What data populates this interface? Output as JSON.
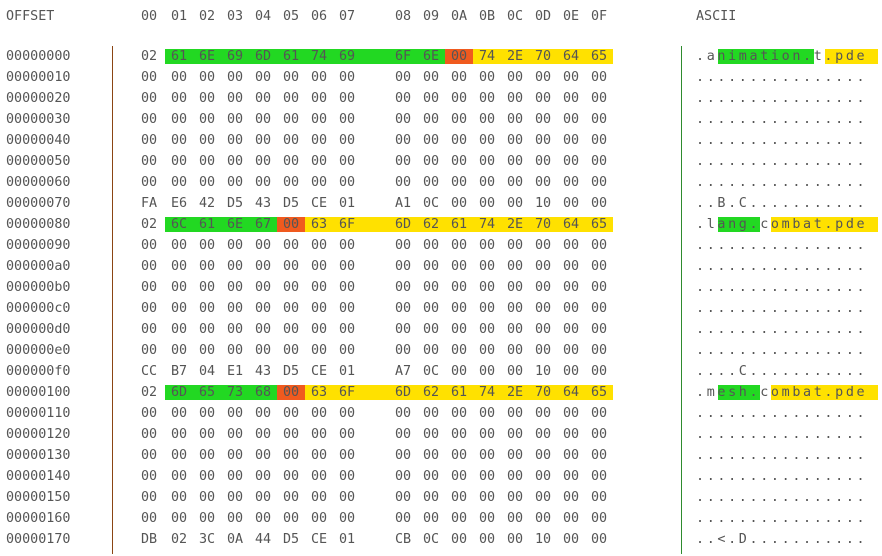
{
  "header": {
    "offset_label": "OFFSET",
    "columns": [
      "00",
      "01",
      "02",
      "03",
      "04",
      "05",
      "06",
      "07",
      "08",
      "09",
      "0A",
      "0B",
      "0C",
      "0D",
      "0E",
      "0F"
    ],
    "ascii_label": "ASCII"
  },
  "colors": {
    "string_highlight": "#22d822",
    "name_highlight": "#ffe100",
    "separator_highlight": "#f05a1e",
    "divider_left": "#8b4513",
    "divider_right": "#2e8b2e"
  },
  "rows": [
    {
      "offset": "00000000",
      "bytes": [
        "02",
        "61",
        "6E",
        "69",
        "6D",
        "61",
        "74",
        "69",
        "6F",
        "6E",
        "00",
        "74",
        "2E",
        "70",
        "64",
        "65"
      ],
      "ascii": ".animation.t.pde"
    },
    {
      "offset": "00000010",
      "bytes": [
        "00",
        "00",
        "00",
        "00",
        "00",
        "00",
        "00",
        "00",
        "00",
        "00",
        "00",
        "00",
        "00",
        "00",
        "00",
        "00"
      ],
      "ascii": "................"
    },
    {
      "offset": "00000020",
      "bytes": [
        "00",
        "00",
        "00",
        "00",
        "00",
        "00",
        "00",
        "00",
        "00",
        "00",
        "00",
        "00",
        "00",
        "00",
        "00",
        "00"
      ],
      "ascii": "................"
    },
    {
      "offset": "00000030",
      "bytes": [
        "00",
        "00",
        "00",
        "00",
        "00",
        "00",
        "00",
        "00",
        "00",
        "00",
        "00",
        "00",
        "00",
        "00",
        "00",
        "00"
      ],
      "ascii": "................"
    },
    {
      "offset": "00000040",
      "bytes": [
        "00",
        "00",
        "00",
        "00",
        "00",
        "00",
        "00",
        "00",
        "00",
        "00",
        "00",
        "00",
        "00",
        "00",
        "00",
        "00"
      ],
      "ascii": "................"
    },
    {
      "offset": "00000050",
      "bytes": [
        "00",
        "00",
        "00",
        "00",
        "00",
        "00",
        "00",
        "00",
        "00",
        "00",
        "00",
        "00",
        "00",
        "00",
        "00",
        "00"
      ],
      "ascii": "................"
    },
    {
      "offset": "00000060",
      "bytes": [
        "00",
        "00",
        "00",
        "00",
        "00",
        "00",
        "00",
        "00",
        "00",
        "00",
        "00",
        "00",
        "00",
        "00",
        "00",
        "00"
      ],
      "ascii": "................"
    },
    {
      "offset": "00000070",
      "bytes": [
        "FA",
        "E6",
        "42",
        "D5",
        "43",
        "D5",
        "CE",
        "01",
        "A1",
        "0C",
        "00",
        "00",
        "00",
        "10",
        "00",
        "00"
      ],
      "ascii": "..B.C..........."
    },
    {
      "offset": "00000080",
      "bytes": [
        "02",
        "6C",
        "61",
        "6E",
        "67",
        "00",
        "63",
        "6F",
        "6D",
        "62",
        "61",
        "74",
        "2E",
        "70",
        "64",
        "65"
      ],
      "ascii": ".lang.combat.pde"
    },
    {
      "offset": "00000090",
      "bytes": [
        "00",
        "00",
        "00",
        "00",
        "00",
        "00",
        "00",
        "00",
        "00",
        "00",
        "00",
        "00",
        "00",
        "00",
        "00",
        "00"
      ],
      "ascii": "................"
    },
    {
      "offset": "000000a0",
      "bytes": [
        "00",
        "00",
        "00",
        "00",
        "00",
        "00",
        "00",
        "00",
        "00",
        "00",
        "00",
        "00",
        "00",
        "00",
        "00",
        "00"
      ],
      "ascii": "................"
    },
    {
      "offset": "000000b0",
      "bytes": [
        "00",
        "00",
        "00",
        "00",
        "00",
        "00",
        "00",
        "00",
        "00",
        "00",
        "00",
        "00",
        "00",
        "00",
        "00",
        "00"
      ],
      "ascii": "................"
    },
    {
      "offset": "000000c0",
      "bytes": [
        "00",
        "00",
        "00",
        "00",
        "00",
        "00",
        "00",
        "00",
        "00",
        "00",
        "00",
        "00",
        "00",
        "00",
        "00",
        "00"
      ],
      "ascii": "................"
    },
    {
      "offset": "000000d0",
      "bytes": [
        "00",
        "00",
        "00",
        "00",
        "00",
        "00",
        "00",
        "00",
        "00",
        "00",
        "00",
        "00",
        "00",
        "00",
        "00",
        "00"
      ],
      "ascii": "................"
    },
    {
      "offset": "000000e0",
      "bytes": [
        "00",
        "00",
        "00",
        "00",
        "00",
        "00",
        "00",
        "00",
        "00",
        "00",
        "00",
        "00",
        "00",
        "00",
        "00",
        "00"
      ],
      "ascii": "................"
    },
    {
      "offset": "000000f0",
      "bytes": [
        "CC",
        "B7",
        "04",
        "E1",
        "43",
        "D5",
        "CE",
        "01",
        "A7",
        "0C",
        "00",
        "00",
        "00",
        "10",
        "00",
        "00"
      ],
      "ascii": "....C..........."
    },
    {
      "offset": "00000100",
      "bytes": [
        "02",
        "6D",
        "65",
        "73",
        "68",
        "00",
        "63",
        "6F",
        "6D",
        "62",
        "61",
        "74",
        "2E",
        "70",
        "64",
        "65"
      ],
      "ascii": ".mesh.combat.pde"
    },
    {
      "offset": "00000110",
      "bytes": [
        "00",
        "00",
        "00",
        "00",
        "00",
        "00",
        "00",
        "00",
        "00",
        "00",
        "00",
        "00",
        "00",
        "00",
        "00",
        "00"
      ],
      "ascii": "................"
    },
    {
      "offset": "00000120",
      "bytes": [
        "00",
        "00",
        "00",
        "00",
        "00",
        "00",
        "00",
        "00",
        "00",
        "00",
        "00",
        "00",
        "00",
        "00",
        "00",
        "00"
      ],
      "ascii": "................"
    },
    {
      "offset": "00000130",
      "bytes": [
        "00",
        "00",
        "00",
        "00",
        "00",
        "00",
        "00",
        "00",
        "00",
        "00",
        "00",
        "00",
        "00",
        "00",
        "00",
        "00"
      ],
      "ascii": "................"
    },
    {
      "offset": "00000140",
      "bytes": [
        "00",
        "00",
        "00",
        "00",
        "00",
        "00",
        "00",
        "00",
        "00",
        "00",
        "00",
        "00",
        "00",
        "00",
        "00",
        "00"
      ],
      "ascii": "................"
    },
    {
      "offset": "00000150",
      "bytes": [
        "00",
        "00",
        "00",
        "00",
        "00",
        "00",
        "00",
        "00",
        "00",
        "00",
        "00",
        "00",
        "00",
        "00",
        "00",
        "00"
      ],
      "ascii": "................"
    },
    {
      "offset": "00000160",
      "bytes": [
        "00",
        "00",
        "00",
        "00",
        "00",
        "00",
        "00",
        "00",
        "00",
        "00",
        "00",
        "00",
        "00",
        "00",
        "00",
        "00"
      ],
      "ascii": "................"
    },
    {
      "offset": "00000170",
      "bytes": [
        "DB",
        "02",
        "3C",
        "0A",
        "44",
        "D5",
        "CE",
        "01",
        "CB",
        "0C",
        "00",
        "00",
        "00",
        "10",
        "00",
        "00"
      ],
      "ascii": "..<.D..........."
    }
  ],
  "highlights": [
    {
      "row": 0,
      "kind": "g",
      "bytes": [
        1,
        9
      ],
      "ascii": [
        1,
        9
      ]
    },
    {
      "row": 0,
      "kind": "r",
      "bytes": [
        10,
        10
      ]
    },
    {
      "row": 0,
      "kind": "y",
      "bytes": [
        11,
        15
      ],
      "ascii": [
        11,
        15
      ]
    },
    {
      "row": 8,
      "kind": "g",
      "bytes": [
        1,
        4
      ],
      "ascii": [
        1,
        4
      ]
    },
    {
      "row": 8,
      "kind": "r",
      "bytes": [
        5,
        5
      ]
    },
    {
      "row": 8,
      "kind": "y",
      "bytes": [
        6,
        15
      ],
      "ascii": [
        6,
        15
      ]
    },
    {
      "row": 16,
      "kind": "g",
      "bytes": [
        1,
        4
      ],
      "ascii": [
        1,
        4
      ]
    },
    {
      "row": 16,
      "kind": "r",
      "bytes": [
        5,
        5
      ]
    },
    {
      "row": 16,
      "kind": "y",
      "bytes": [
        6,
        15
      ],
      "ascii": [
        6,
        15
      ]
    }
  ]
}
